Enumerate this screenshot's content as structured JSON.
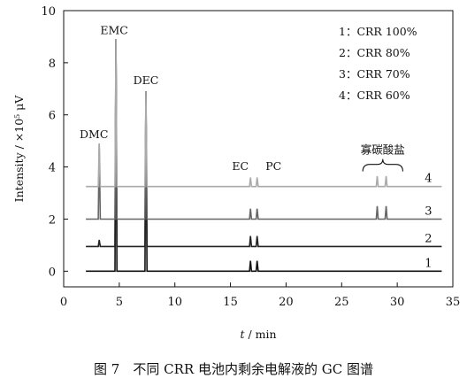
{
  "chart_data": {
    "type": "line",
    "xlabel_var": "t",
    "xlabel_unit": " / min",
    "ylabel": "Intensity / ×10⁵ μV",
    "xlim": [
      0,
      35
    ],
    "ylim": [
      -0.6,
      10
    ],
    "xticks": [
      0,
      5,
      10,
      15,
      20,
      25,
      30,
      35
    ],
    "yticks": [
      0,
      2,
      4,
      6,
      8,
      10
    ],
    "grid": false,
    "legend_position": "top-right",
    "legend": [
      "1：CRR 100%",
      "2：CRR 80%",
      "3：CRR 70%",
      "4：CRR 60%"
    ],
    "curve_labels": [
      "1",
      "2",
      "3",
      "4"
    ],
    "peak_labels": {
      "DMC": {
        "x": 3.2,
        "y": 4.9
      },
      "EMC": {
        "x": 4.7,
        "y": 8.9
      },
      "DEC": {
        "x": 7.4,
        "y": 6.9
      },
      "EC": {
        "x": 17.0
      },
      "PC": {
        "x": 17.6
      },
      "oligo": {
        "x_start": 26.9,
        "x_end": 30.5
      }
    },
    "oligo_label": "寡碳酸盐",
    "series": [
      {
        "label": "1",
        "color": "#111111",
        "baseline": 0,
        "peaks": [
          [
            4.7,
            8.9
          ],
          [
            7.4,
            6.9
          ],
          [
            16.8,
            0.4
          ],
          [
            17.4,
            0.4
          ]
        ]
      },
      {
        "label": "2",
        "color": "#222222",
        "baseline": 0.95,
        "peaks": [
          [
            3.2,
            1.2
          ],
          [
            4.7,
            8.9
          ],
          [
            7.4,
            6.9
          ],
          [
            16.8,
            1.35
          ],
          [
            17.4,
            1.35
          ]
        ]
      },
      {
        "label": "3",
        "color": "#666666",
        "baseline": 2.0,
        "peaks": [
          [
            3.2,
            4.9
          ],
          [
            4.7,
            8.9
          ],
          [
            7.4,
            6.9
          ],
          [
            16.8,
            2.4
          ],
          [
            17.4,
            2.4
          ],
          [
            28.2,
            2.5
          ],
          [
            29.0,
            2.5
          ]
        ]
      },
      {
        "label": "4",
        "color": "#aaaaaa",
        "baseline": 3.25,
        "peaks": [
          [
            3.2,
            4.9
          ],
          [
            4.7,
            8.9
          ],
          [
            7.4,
            6.9
          ],
          [
            16.8,
            3.6
          ],
          [
            17.4,
            3.6
          ],
          [
            28.2,
            3.65
          ],
          [
            29.0,
            3.65
          ]
        ]
      }
    ]
  },
  "caption": "图 7　不同 CRR 电池内剩余电解液的 GC 图谱"
}
